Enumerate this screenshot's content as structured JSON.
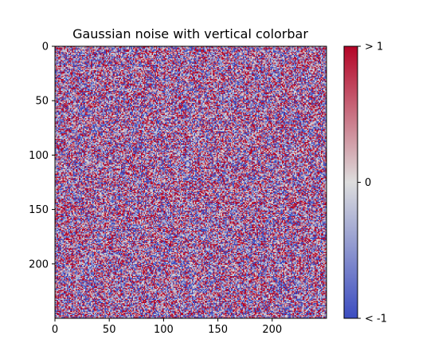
{
  "chart_data": {
    "type": "heatmap",
    "title": "Gaussian noise with vertical colorbar",
    "xlabel": "",
    "ylabel": "",
    "rows": 250,
    "cols": 250,
    "distribution": "gaussian",
    "mean": 0,
    "std": 1,
    "colormap": "coolwarm",
    "color_low": "#3b4cc0",
    "color_mid": "#dddddd",
    "color_high": "#b40426",
    "clim": [
      -1,
      1
    ],
    "xlim": [
      0,
      250
    ],
    "ylim": [
      250,
      0
    ],
    "y_inverted": true,
    "x_ticks": [
      0,
      50,
      100,
      150,
      200
    ],
    "y_ticks": [
      0,
      50,
      100,
      150,
      200
    ],
    "grid": false,
    "colorbar": {
      "orientation": "vertical",
      "ticks": [
        {
          "value": -1,
          "label": "< -1"
        },
        {
          "value": 0,
          "label": "0"
        },
        {
          "value": 1,
          "label": "> 1"
        }
      ]
    }
  }
}
